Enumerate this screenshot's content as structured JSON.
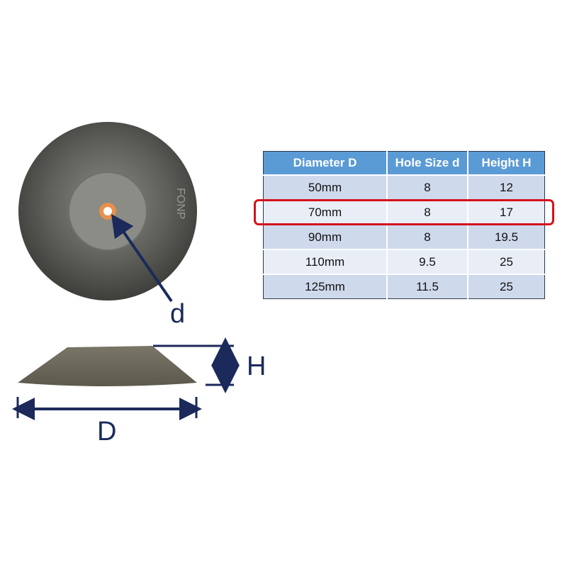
{
  "labels": {
    "hole": "d",
    "height": "H",
    "diameter": "D"
  },
  "table": {
    "headers": [
      "Diameter D",
      "Hole Size d",
      "Height H"
    ],
    "rows": [
      [
        "50mm",
        "8",
        "12"
      ],
      [
        "70mm",
        "8",
        "17"
      ],
      [
        "90mm",
        "8",
        "19.5"
      ],
      [
        "110mm",
        "9.5",
        "25"
      ],
      [
        "125mm",
        "11.5",
        "25"
      ]
    ],
    "highlighted_row": "70mm"
  },
  "logo_text": "FONP",
  "colors": {
    "header": "#5b9bd5",
    "highlight": "#d4121c",
    "arrow": "#1b2a5a",
    "hole": "#e8904a"
  }
}
